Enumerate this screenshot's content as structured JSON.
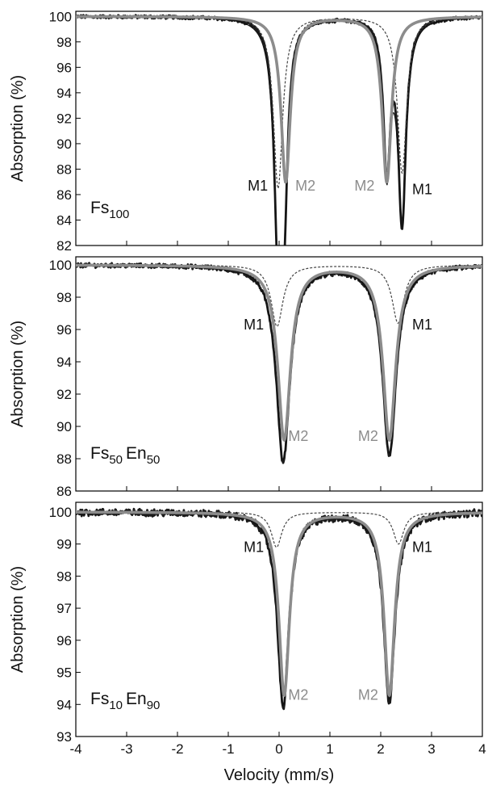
{
  "chart_data": [
    {
      "type": "line",
      "title": "",
      "sample_label": {
        "main": "Fs",
        "sub": "100",
        "main2": "",
        "sub2": ""
      },
      "ylabel": "Absorption (%)",
      "xlabel": "",
      "xlim": [
        -4,
        4
      ],
      "ylim": [
        82,
        100.4
      ],
      "yticks": [
        82,
        84,
        86,
        88,
        90,
        92,
        94,
        96,
        98,
        100
      ],
      "xticks": [
        -4,
        -3,
        -2,
        -1,
        0,
        1,
        2,
        3,
        4
      ],
      "show_xtick_labels": false,
      "noise": 0.12,
      "series": [
        {
          "role": "data",
          "color": "#1a1a1a",
          "dash": "",
          "lines": [
            {
              "c": -0.02,
              "w": 0.18,
              "d": 17.2
            },
            {
              "c": 2.42,
              "w": 0.18,
              "d": 16.0
            },
            {
              "c": 0.1,
              "w": 0.16,
              "d": 12.9
            },
            {
              "c": 2.12,
              "w": 0.16,
              "d": 11.6
            }
          ]
        },
        {
          "role": "envelope",
          "color": "#111111",
          "dash": "",
          "lines": [
            {
              "c": -0.02,
              "w": 0.2,
              "d": 16.9
            },
            {
              "c": 2.42,
              "w": 0.2,
              "d": 15.7
            },
            {
              "c": 0.1,
              "w": 0.17,
              "d": 12.9
            },
            {
              "c": 2.12,
              "w": 0.17,
              "d": 11.6
            }
          ]
        },
        {
          "role": "M1 doublet",
          "color": "#444444",
          "dash": "3,2",
          "lines": [
            {
              "c": -0.02,
              "w": 0.22,
              "d": 13.5
            },
            {
              "c": 2.42,
              "w": 0.22,
              "d": 12.3
            }
          ]
        },
        {
          "role": "M2 doublet",
          "color": "#8c8c8c",
          "dash": "",
          "lines": [
            {
              "c": 0.13,
              "w": 0.22,
              "d": 13.0
            },
            {
              "c": 2.12,
              "w": 0.22,
              "d": 13.0
            }
          ]
        }
      ],
      "annotations": [
        {
          "text": "M1",
          "x": -0.22,
          "y": 86.7,
          "color": "#111111",
          "anchor": "end"
        },
        {
          "text": "M2",
          "x": 0.32,
          "y": 86.7,
          "color": "#8c8c8c",
          "anchor": "start"
        },
        {
          "text": "M2",
          "x": 1.88,
          "y": 86.7,
          "color": "#8c8c8c",
          "anchor": "end"
        },
        {
          "text": "M1",
          "x": 2.62,
          "y": 86.4,
          "color": "#111111",
          "anchor": "start"
        }
      ]
    },
    {
      "type": "line",
      "title": "",
      "sample_label": {
        "main": "Fs",
        "sub": "50",
        "main2": "En",
        "sub2": "50"
      },
      "ylabel": "Absorption (%)",
      "xlabel": "",
      "xlim": [
        -4,
        4
      ],
      "ylim": [
        86,
        100.5
      ],
      "yticks": [
        86,
        88,
        90,
        92,
        94,
        96,
        98,
        100
      ],
      "xticks": [
        -4,
        -3,
        -2,
        -1,
        0,
        1,
        2,
        3,
        4
      ],
      "show_xtick_labels": false,
      "noise": 0.12,
      "series": [
        {
          "role": "data",
          "color": "#1a1a1a",
          "dash": "",
          "lines": [
            {
              "c": 0.08,
              "w": 0.32,
              "d": 12.2
            },
            {
              "c": 2.17,
              "w": 0.32,
              "d": 11.8
            }
          ]
        },
        {
          "role": "envelope",
          "color": "#111111",
          "dash": "",
          "lines": [
            {
              "c": 0.08,
              "w": 0.32,
              "d": 12.0
            },
            {
              "c": 2.17,
              "w": 0.32,
              "d": 11.6
            }
          ]
        },
        {
          "role": "M1 doublet",
          "color": "#444444",
          "dash": "3,2",
          "lines": [
            {
              "c": -0.04,
              "w": 0.28,
              "d": 3.8
            },
            {
              "c": 2.34,
              "w": 0.28,
              "d": 3.6
            }
          ]
        },
        {
          "role": "M2 doublet",
          "color": "#8c8c8c",
          "dash": "",
          "lines": [
            {
              "c": 0.1,
              "w": 0.3,
              "d": 10.8
            },
            {
              "c": 2.17,
              "w": 0.3,
              "d": 10.8
            }
          ]
        }
      ],
      "annotations": [
        {
          "text": "M1",
          "x": -0.3,
          "y": 96.3,
          "color": "#111111",
          "anchor": "end"
        },
        {
          "text": "M2",
          "x": 0.18,
          "y": 89.4,
          "color": "#8c8c8c",
          "anchor": "start"
        },
        {
          "text": "M2",
          "x": 1.95,
          "y": 89.4,
          "color": "#8c8c8c",
          "anchor": "end"
        },
        {
          "text": "M1",
          "x": 2.62,
          "y": 96.3,
          "color": "#111111",
          "anchor": "start"
        }
      ]
    },
    {
      "type": "line",
      "title": "",
      "sample_label": {
        "main": "Fs",
        "sub": "10",
        "main2": "En",
        "sub2": "90"
      },
      "ylabel": "Absorption (%)",
      "xlabel": "Velocity (mm/s)",
      "xlim": [
        -4,
        4
      ],
      "ylim": [
        93,
        100.3
      ],
      "yticks": [
        93,
        94,
        95,
        96,
        97,
        98,
        99,
        100
      ],
      "xticks": [
        -4,
        -3,
        -2,
        -1,
        0,
        1,
        2,
        3,
        4
      ],
      "show_xtick_labels": true,
      "noise": 0.1,
      "series": [
        {
          "role": "data",
          "color": "#1a1a1a",
          "dash": "",
          "lines": [
            {
              "c": 0.08,
              "w": 0.27,
              "d": 6.1
            },
            {
              "c": 2.17,
              "w": 0.27,
              "d": 5.9
            }
          ]
        },
        {
          "role": "envelope",
          "color": "#111111",
          "dash": "",
          "lines": [
            {
              "c": 0.08,
              "w": 0.27,
              "d": 6.0
            },
            {
              "c": 2.17,
              "w": 0.27,
              "d": 5.8
            }
          ]
        },
        {
          "role": "M1 doublet",
          "color": "#444444",
          "dash": "3,2",
          "lines": [
            {
              "c": -0.05,
              "w": 0.25,
              "d": 1.1
            },
            {
              "c": 2.35,
              "w": 0.25,
              "d": 1.0
            }
          ]
        },
        {
          "role": "M2 doublet",
          "color": "#8c8c8c",
          "dash": "",
          "lines": [
            {
              "c": 0.1,
              "w": 0.25,
              "d": 5.7
            },
            {
              "c": 2.17,
              "w": 0.25,
              "d": 5.7
            }
          ]
        }
      ],
      "annotations": [
        {
          "text": "M1",
          "x": -0.3,
          "y": 98.9,
          "color": "#111111",
          "anchor": "end"
        },
        {
          "text": "M2",
          "x": 0.18,
          "y": 94.3,
          "color": "#8c8c8c",
          "anchor": "start"
        },
        {
          "text": "M2",
          "x": 1.95,
          "y": 94.3,
          "color": "#8c8c8c",
          "anchor": "end"
        },
        {
          "text": "M1",
          "x": 2.62,
          "y": 98.9,
          "color": "#111111",
          "anchor": "start"
        }
      ]
    }
  ]
}
